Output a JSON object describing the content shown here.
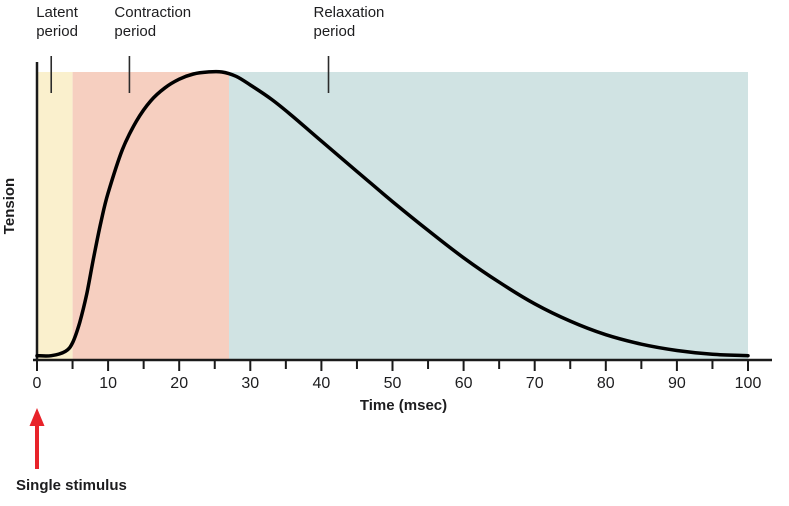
{
  "chart_data": {
    "type": "line",
    "title": "",
    "xlabel": "Time (msec)",
    "ylabel": "Tension",
    "xlim": [
      0,
      100
    ],
    "ylim": [
      0,
      1
    ],
    "x_ticks": [
      0,
      10,
      20,
      30,
      40,
      50,
      60,
      70,
      80,
      90,
      100
    ],
    "x_minor_tick_step": 5,
    "y_ticks": [],
    "grid": false,
    "axis_color": "#1a1a1a",
    "annotation_line_color": "#2b2b2b",
    "regions": [
      {
        "name": "Latent period",
        "start": 0,
        "end": 5,
        "color": "#faf0cd",
        "label_x": 2
      },
      {
        "name": "Contraction period",
        "start": 5,
        "end": 27,
        "color": "#f6cfc0",
        "label_x": 13
      },
      {
        "name": "Relaxation period",
        "start": 27,
        "end": 100,
        "color": "#d0e3e3",
        "label_x": 41
      }
    ],
    "series": [
      {
        "name": "tension",
        "color": "#000000",
        "x": [
          0,
          2,
          4,
          5,
          6,
          7,
          8,
          9,
          10,
          12,
          14,
          16,
          18,
          20,
          22,
          24,
          26,
          28,
          30,
          33,
          36,
          40,
          45,
          50,
          55,
          60,
          65,
          70,
          75,
          80,
          85,
          90,
          95,
          100
        ],
        "y": [
          0.015,
          0.015,
          0.03,
          0.06,
          0.13,
          0.23,
          0.36,
          0.48,
          0.58,
          0.73,
          0.83,
          0.9,
          0.945,
          0.975,
          0.993,
          1.0,
          1.0,
          0.985,
          0.955,
          0.905,
          0.845,
          0.76,
          0.655,
          0.55,
          0.45,
          0.355,
          0.27,
          0.195,
          0.135,
          0.088,
          0.055,
          0.033,
          0.02,
          0.015
        ]
      }
    ],
    "stimulus": {
      "label": "Single stimulus",
      "x": 0,
      "color": "#e8232a"
    }
  }
}
